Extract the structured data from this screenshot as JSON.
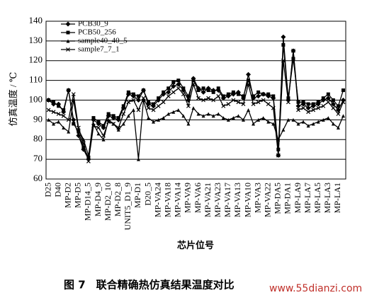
{
  "chart_data": {
    "type": "line",
    "y_label": "仿真温度 / ℃",
    "x_label": "芯片位号",
    "caption": "图 7　联合精确热仿真结果温度对比",
    "watermark": "www.55dianzi.com",
    "categories": [
      "D25",
      null,
      "D40",
      null,
      "MP-D2",
      null,
      "MP-D5",
      null,
      "MP-D14_5",
      null,
      "MP-D4_9",
      null,
      "MP-D2_10",
      null,
      "MP-D2_8",
      null,
      "UNIT5_D1_9",
      null,
      "MP-D1",
      null,
      "D20_5",
      null,
      "MP-VA24",
      null,
      "MP-VA18",
      null,
      "MP-VA14",
      null,
      "MP-VA9",
      null,
      "MP-VA6",
      null,
      "MP-VA21",
      null,
      "MP-VA23",
      null,
      "MP-VA17",
      null,
      "MP-VA13",
      null,
      "MP-VA10",
      null,
      "MP-VA3",
      null,
      "MP-VA22",
      null,
      "MP-DA5",
      null,
      "MP-DA1",
      null,
      "MP-LA9",
      null,
      "MP-LA7",
      null,
      "MP-LA5",
      null,
      "MP-LA3",
      null,
      "MP-LA1",
      null
    ],
    "series": [
      {
        "name": "PCB30_9",
        "color": "#000000",
        "marker": "diamond",
        "values": [
          100,
          98,
          98,
          94,
          105,
          90,
          82,
          75,
          70,
          90,
          88,
          86,
          92,
          91,
          90,
          96,
          103,
          102,
          100,
          105,
          98,
          97,
          100,
          103,
          104,
          107,
          108,
          105,
          100,
          111,
          106,
          104,
          106,
          105,
          105,
          101,
          102,
          103,
          104,
          101,
          113,
          101,
          102,
          103,
          102,
          101,
          72,
          132,
          100,
          125,
          97,
          98,
          96,
          97,
          98,
          100,
          101,
          98,
          95,
          100
        ]
      },
      {
        "name": "PCB50_256",
        "color": "#000000",
        "marker": "square",
        "values": [
          100,
          99,
          97,
          95,
          105,
          88,
          84,
          76,
          71,
          91,
          89,
          87,
          93,
          92,
          91,
          97,
          104,
          103,
          102,
          105,
          99,
          98,
          101,
          104,
          106,
          109,
          110,
          106,
          102,
          110,
          105,
          106,
          105,
          104,
          106,
          102,
          103,
          104,
          103,
          102,
          110,
          102,
          104,
          103,
          103,
          102,
          75,
          128,
          101,
          121,
          99,
          99,
          98,
          98,
          99,
          101,
          103,
          100,
          97,
          105
        ]
      },
      {
        "name": "sample40_40_5",
        "color": "#000000",
        "marker": "triangle",
        "values": [
          90,
          88,
          89,
          86,
          84,
          100,
          85,
          80,
          72,
          88,
          83,
          80,
          90,
          88,
          85,
          88,
          92,
          95,
          70,
          100,
          91,
          89,
          90,
          91,
          93,
          94,
          95,
          92,
          88,
          96,
          93,
          92,
          93,
          92,
          93,
          91,
          90,
          91,
          92,
          90,
          95,
          88,
          90,
          91,
          89,
          88,
          80,
          85,
          90,
          90,
          88,
          89,
          87,
          88,
          89,
          90,
          91,
          88,
          86,
          92
        ]
      },
      {
        "name": "sample7_7_1",
        "color": "#000000",
        "marker": "cross",
        "values": [
          95,
          94,
          93,
          92,
          90,
          103,
          86,
          78,
          69,
          87,
          86,
          82,
          89,
          88,
          86,
          93,
          99,
          100,
          95,
          101,
          96,
          95,
          97,
          99,
          102,
          104,
          106,
          103,
          97,
          108,
          101,
          100,
          101,
          100,
          102,
          97,
          98,
          100,
          99,
          98,
          108,
          98,
          99,
          100,
          98,
          96,
          72,
          120,
          99,
          125,
          95,
          96,
          94,
          95,
          96,
          97,
          99,
          96,
          93,
          99
        ]
      }
    ],
    "ylim": [
      60,
      140
    ],
    "yticks": [
      60,
      70,
      80,
      90,
      100,
      110,
      120,
      130,
      140
    ],
    "grid": true,
    "legend": "upper left"
  }
}
